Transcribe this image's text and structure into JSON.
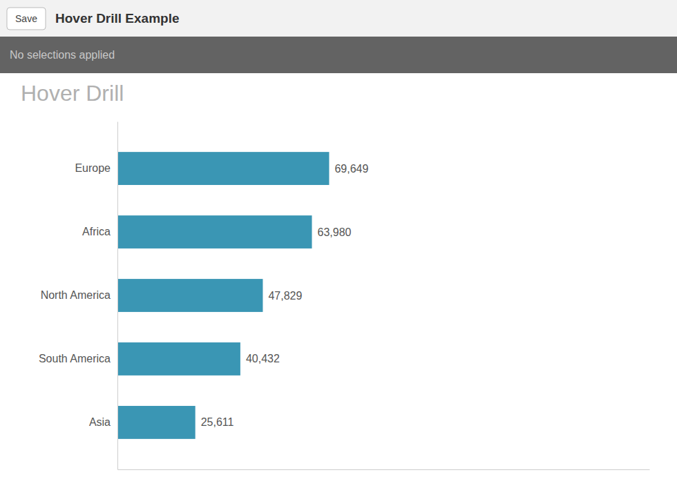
{
  "chart_data": {
    "type": "bar",
    "orientation": "horizontal",
    "title": "Hover Drill",
    "annotations": [
      "Hover Drill Example",
      "No selections applied",
      "Save"
    ],
    "categories": [
      "Europe",
      "Africa",
      "North America",
      "South America",
      "Asia"
    ],
    "values": [
      69649,
      63980,
      47829,
      40432,
      25611
    ],
    "value_labels": [
      "69,649",
      "63,980",
      "47,829",
      "40,432",
      "25,611"
    ],
    "color": "#3a96b4",
    "xlim": [
      0,
      175000
    ],
    "grid": false,
    "data_labels": true,
    "tick_labels": "y"
  }
}
